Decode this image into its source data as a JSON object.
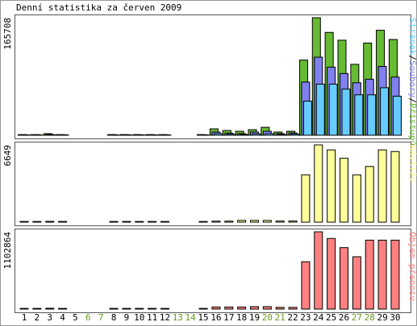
{
  "chart_data": {
    "type": "bar",
    "title": "Denní statistika za červen 2009",
    "categories": [
      1,
      2,
      3,
      4,
      5,
      6,
      7,
      8,
      9,
      10,
      11,
      12,
      13,
      14,
      15,
      16,
      17,
      18,
      19,
      20,
      21,
      22,
      23,
      24,
      25,
      26,
      27,
      28,
      29,
      30
    ],
    "label_colors": [
      "#000000",
      "#000000",
      "#000000",
      "#000000",
      "#000000",
      "#6a9a1f",
      "#6a9a1f",
      "#000000",
      "#000000",
      "#000000",
      "#000000",
      "#000000",
      "#6a9a1f",
      "#6a9a1f",
      "#000000",
      "#000000",
      "#000000",
      "#000000",
      "#000000",
      "#6a9a1f",
      "#6a9a1f",
      "#000000",
      "#000000",
      "#000000",
      "#000000",
      "#000000",
      "#6a9a1f",
      "#6a9a1f",
      "#000000",
      "#000000"
    ],
    "separator": "/",
    "panels": [
      {
        "ylim": [
          0,
          165708
        ],
        "yticks": [
          165708
        ],
        "series": [
          {
            "name": "Stránek",
            "color": "#66ccff",
            "values": [
              300,
              300,
              500,
              300,
              0,
              0,
              0,
              300,
              300,
              300,
              300,
              300,
              0,
              0,
              300,
              2200,
              1500,
              1100,
              2000,
              2200,
              1100,
              1700,
              48000,
              72000,
              72000,
              65000,
              57000,
              57000,
              67000,
              55000
            ]
          },
          {
            "name": "Soubory",
            "color": "#8080f0",
            "values": [
              600,
              600,
              1100,
              600,
              0,
              0,
              0,
              600,
              600,
              600,
              600,
              600,
              0,
              0,
              600,
              4500,
              3000,
              2200,
              4500,
              5600,
              2200,
              3300,
              75000,
              110000,
              96000,
              87000,
              74000,
              79000,
              97000,
              82000
            ]
          },
          {
            "name": "Přístupů",
            "color": "#66bb33",
            "values": [
              900,
              900,
              2200,
              900,
              0,
              0,
              0,
              900,
              900,
              900,
              900,
              900,
              0,
              0,
              900,
              9000,
              6700,
              5600,
              7800,
              11200,
              4500,
              5600,
              106000,
              165708,
              145000,
              134000,
              100000,
              130000,
              148000,
              135000
            ]
          }
        ]
      },
      {
        "ylim": [
          0,
          6649
        ],
        "yticks": [
          6649
        ],
        "series": [
          {
            "name": "Návštěv",
            "color": "#ffff99",
            "values": [
              60,
              60,
              70,
              60,
              0,
              0,
              0,
              60,
              60,
              60,
              60,
              60,
              0,
              0,
              60,
              90,
              90,
              150,
              150,
              150,
              100,
              100,
              4075,
              6649,
              6220,
              5500,
              4075,
              4790,
              6220,
              6077
            ]
          }
        ]
      },
      {
        "ylim": [
          0,
          1102864
        ],
        "yticks": [
          1102864
        ],
        "series": [
          {
            "name": "Objem přenosu",
            "color": "#ff8080",
            "values": [
              10000,
              10000,
              12000,
              10000,
              0,
              0,
              0,
              10000,
              10000,
              10000,
              10000,
              10000,
              0,
              0,
              10000,
              30000,
              30000,
              30000,
              35000,
              35000,
              25000,
              25000,
              676000,
              1102864,
              1008000,
              877000,
              747000,
              984000,
              984000,
              984000
            ]
          }
        ]
      }
    ]
  }
}
